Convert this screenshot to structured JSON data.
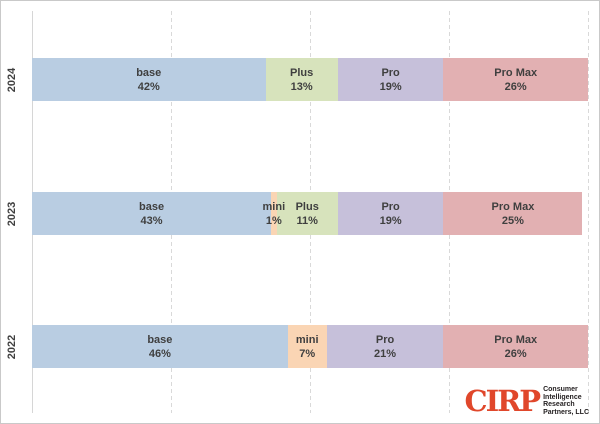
{
  "chart_data": {
    "type": "bar",
    "orientation": "horizontal-stacked",
    "title": "",
    "xlabel": "",
    "ylabel": "",
    "xlim": [
      0,
      100
    ],
    "grid": true,
    "gridlines_pct": [
      25,
      50,
      75,
      100
    ],
    "categories": [
      "2024",
      "2023",
      "2022"
    ],
    "series_labels": [
      "base",
      "mini",
      "Plus",
      "Pro",
      "Pro Max"
    ],
    "rows": [
      {
        "year": "2024",
        "segments": [
          {
            "label": "base",
            "value": 42
          },
          {
            "label": "Plus",
            "value": 13
          },
          {
            "label": "Pro",
            "value": 19
          },
          {
            "label": "Pro Max",
            "value": 26
          }
        ]
      },
      {
        "year": "2023",
        "segments": [
          {
            "label": "base",
            "value": 43
          },
          {
            "label": "mini",
            "value": 1
          },
          {
            "label": "Plus",
            "value": 11
          },
          {
            "label": "Pro",
            "value": 19
          },
          {
            "label": "Pro Max",
            "value": 25
          }
        ]
      },
      {
        "year": "2022",
        "segments": [
          {
            "label": "base",
            "value": 46
          },
          {
            "label": "mini",
            "value": 7
          },
          {
            "label": "Pro",
            "value": 21
          },
          {
            "label": "Pro Max",
            "value": 26
          }
        ]
      }
    ],
    "colors": {
      "base": "#b9cde2",
      "mini": "#fad5b4",
      "Plus": "#d7e3bc",
      "Pro": "#c6c0da",
      "Pro Max": "#e2b0b2"
    },
    "label_color": "#3f3f3f",
    "gridline_color": "#d9d9d9"
  },
  "logo": {
    "brand": "CIRP",
    "brand_color": "#e0472b",
    "lines": [
      "Consumer",
      "Intelligence",
      "Research",
      "Partners, LLC"
    ]
  }
}
